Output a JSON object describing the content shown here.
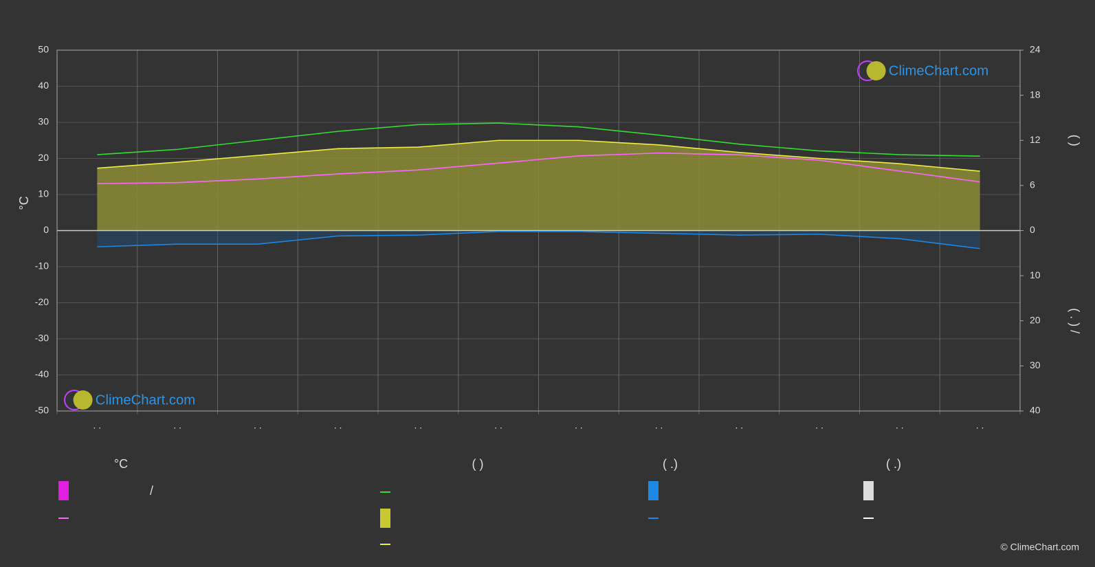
{
  "chart_data": {
    "type": "line",
    "categories": [
      ". .",
      ". .",
      ". .",
      ". .",
      ". .",
      ". .",
      ". .",
      ". .",
      ". .",
      ". .",
      ". .",
      ". ."
    ],
    "y_label": "°C",
    "ylim": [
      -50,
      50
    ],
    "yticks": [
      -50,
      -40,
      -30,
      -20,
      -10,
      0,
      10,
      20,
      30,
      40,
      50
    ],
    "y2lim": [
      0,
      24
    ],
    "y2ticks": [
      0,
      6,
      12,
      18,
      24
    ],
    "y2_label": "(    )",
    "y3lim": [
      0,
      40
    ],
    "y3ticks": [
      10,
      20,
      30,
      40
    ],
    "y3_label": "( . )  /",
    "grid": true,
    "series": [
      {
        "color": "#ff66ff",
        "values": [
          13,
          13.3,
          14.3,
          15.7,
          16.8,
          18.7,
          20.7,
          21.5,
          21,
          19.5,
          16.5,
          13.5
        ]
      },
      {
        "color": "#33dd33",
        "axis": "y2",
        "values": [
          10.1,
          10.8,
          12.0,
          13.2,
          14.1,
          14.3,
          13.8,
          12.7,
          11.5,
          10.6,
          10.1,
          9.9
        ]
      },
      {
        "color": "#eeee44",
        "axis": "y2",
        "values": [
          8.3,
          9.1,
          10.0,
          10.9,
          11.1,
          12.0,
          12.0,
          11.4,
          10.4,
          9.6,
          8.9,
          7.9
        ]
      },
      {
        "color": "#1e88e5",
        "axis": "y3",
        "values": [
          3.6,
          3.0,
          3.0,
          1.2,
          1.0,
          0.2,
          0.2,
          0.6,
          1.0,
          0.8,
          1.8,
          4.0
        ]
      }
    ],
    "legend": {
      "headers": [
        "°C",
        "(          )",
        "(   .)",
        "(   .)"
      ],
      "note": "/"
    },
    "watermark": "ClimeChart.com",
    "copyright": "© ClimeChart.com"
  }
}
